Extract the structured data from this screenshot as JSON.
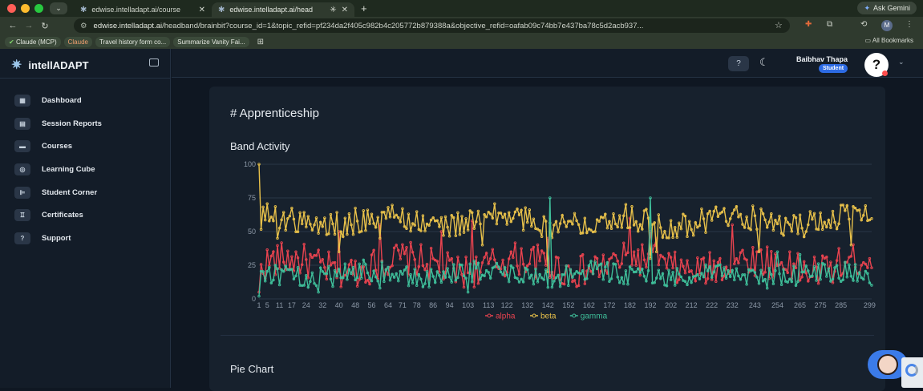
{
  "browser": {
    "tabs": [
      {
        "title": "edwise.intelladapt.ai/course",
        "active": false
      },
      {
        "title": "edwise.intelladapt.ai/head",
        "active": true
      }
    ],
    "new_tab": "+",
    "ask_gemini": "Ask Gemini",
    "url_domain": "edwise.intelladapt.ai",
    "url_path": "/headband/brainbit?course_id=1&topic_refid=pf234da2f405c982b4c205772b879388a&objective_refid=oafab09c74bb7e437ba78c5d2acb937...",
    "profile_initial": "M",
    "bookmarks": [
      "Claude (MCP)",
      "Claude",
      "Travel history form co...",
      "Summarize Vanity Fai..."
    ],
    "all_bookmarks": "All Bookmarks"
  },
  "app": {
    "name": "intellADAPT",
    "nav": [
      {
        "label": "Dashboard",
        "icon": "dashboard-icon"
      },
      {
        "label": "Session Reports",
        "icon": "session-reports-icon"
      },
      {
        "label": "Courses",
        "icon": "courses-icon"
      },
      {
        "label": "Learning Cube",
        "icon": "learning-cube-icon"
      },
      {
        "label": "Student Corner",
        "icon": "student-corner-icon"
      },
      {
        "label": "Certificates",
        "icon": "certificates-icon"
      },
      {
        "label": "Support",
        "icon": "support-icon"
      }
    ],
    "user": {
      "name": "Baibhav Thapa",
      "role": "Student"
    }
  },
  "content": {
    "heading": "# Apprenticeship",
    "chart_title": "Band Activity",
    "pie_title": "Pie Chart"
  },
  "colors": {
    "alpha": "#e8434f",
    "beta": "#e8c14a",
    "gamma": "#3fbf9a",
    "grid": "#2a3646"
  },
  "chart_data": {
    "type": "line",
    "title": "Band Activity",
    "ylim": [
      0,
      100
    ],
    "yticks": [
      0,
      25,
      50,
      75,
      100
    ],
    "x_tick_labels": [
      1,
      5,
      11,
      17,
      24,
      32,
      40,
      48,
      56,
      64,
      71,
      78,
      86,
      94,
      103,
      113,
      122,
      132,
      142,
      152,
      162,
      172,
      182,
      192,
      202,
      212,
      222,
      232,
      243,
      254,
      265,
      275,
      285,
      299
    ],
    "n_points": 300,
    "legend_position": "bottom",
    "series": [
      {
        "name": "alpha",
        "color": "#e8434f",
        "mean": 25,
        "spread": 8,
        "spikes": [
          [
            1,
            5
          ],
          [
            40,
            50
          ],
          [
            60,
            55
          ],
          [
            90,
            50
          ],
          [
            105,
            58
          ],
          [
            142,
            45
          ],
          [
            182,
            60
          ],
          [
            192,
            50
          ],
          [
            195,
            45
          ],
          [
            232,
            55
          ],
          [
            260,
            35
          ],
          [
            299,
            30
          ]
        ]
      },
      {
        "name": "beta",
        "color": "#e8c14a",
        "mean": 58,
        "spread": 6,
        "spikes": [
          [
            1,
            100
          ],
          [
            10,
            45
          ],
          [
            40,
            35
          ],
          [
            60,
            45
          ],
          [
            110,
            40
          ],
          [
            142,
            20
          ],
          [
            192,
            30
          ],
          [
            195,
            35
          ],
          [
            245,
            35
          ],
          [
            290,
            40
          ]
        ]
      },
      {
        "name": "gamma",
        "color": "#3fbf9a",
        "mean": 18,
        "spread": 5,
        "spikes": [
          [
            1,
            2
          ],
          [
            30,
            5
          ],
          [
            60,
            8
          ],
          [
            103,
            5
          ],
          [
            143,
            75
          ],
          [
            192,
            75
          ],
          [
            254,
            35
          ],
          [
            265,
            33
          ]
        ]
      }
    ]
  }
}
